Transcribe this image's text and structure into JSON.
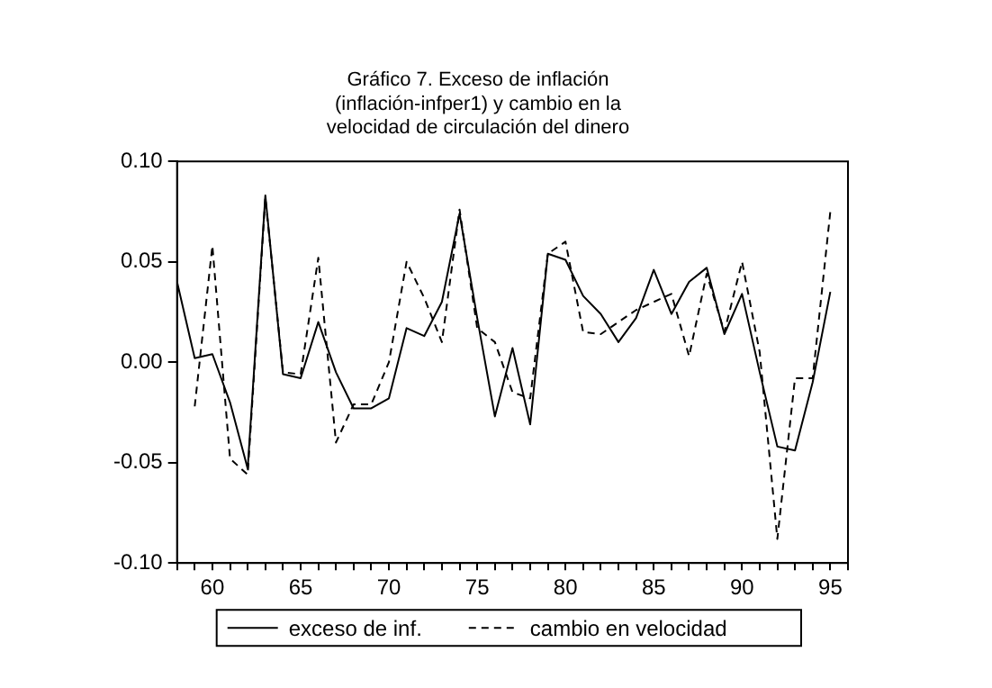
{
  "chart_data": {
    "type": "line",
    "title": "Gráfico 7. Exceso de inflación\n(inflación-infper1) y cambio en la\nvelocidad de circulación del dinero",
    "x": [
      58,
      59,
      60,
      61,
      62,
      63,
      64,
      65,
      66,
      67,
      68,
      69,
      70,
      71,
      72,
      73,
      74,
      75,
      76,
      77,
      78,
      79,
      80,
      81,
      82,
      83,
      84,
      85,
      86,
      87,
      88,
      89,
      90,
      91,
      92,
      93,
      94,
      95
    ],
    "series": [
      {
        "name": "exceso de inf.",
        "color": "#000000",
        "line_style": "solid",
        "values": [
          0.04,
          0.002,
          0.004,
          -0.02,
          -0.053,
          0.083,
          -0.006,
          -0.008,
          0.02,
          -0.005,
          -0.023,
          -0.023,
          -0.018,
          0.017,
          0.013,
          0.03,
          0.074,
          0.022,
          -0.027,
          0.007,
          -0.031,
          0.054,
          0.051,
          0.033,
          0.024,
          0.01,
          0.022,
          0.046,
          0.024,
          0.04,
          0.047,
          0.014,
          0.034,
          -0.005,
          -0.042,
          -0.044,
          -0.01,
          0.035
        ]
      },
      {
        "name": "cambio en velocidad",
        "color": "#000000",
        "line_style": "dashed",
        "values": [
          null,
          -0.022,
          0.058,
          -0.048,
          -0.056,
          0.082,
          -0.005,
          -0.006,
          0.052,
          -0.04,
          -0.021,
          -0.021,
          0.0,
          0.05,
          0.032,
          0.01,
          0.076,
          0.017,
          0.01,
          -0.015,
          -0.018,
          0.054,
          0.06,
          0.015,
          0.014,
          0.02,
          0.026,
          0.03,
          0.034,
          0.003,
          0.044,
          0.015,
          0.05,
          0.005,
          -0.088,
          -0.008,
          -0.008,
          0.075
        ]
      }
    ],
    "xlim": [
      58,
      96
    ],
    "xticks": [
      {
        "value": 58,
        "label": null
      },
      {
        "value": 59,
        "label": null
      },
      60,
      {
        "value": 61,
        "label": null
      },
      {
        "value": 62,
        "label": null
      },
      {
        "value": 63,
        "label": null
      },
      {
        "value": 64,
        "label": null
      },
      65,
      {
        "value": 66,
        "label": null
      },
      {
        "value": 67,
        "label": null
      },
      {
        "value": 68,
        "label": null
      },
      {
        "value": 69,
        "label": null
      },
      70,
      {
        "value": 71,
        "label": null
      },
      {
        "value": 72,
        "label": null
      },
      {
        "value": 73,
        "label": null
      },
      {
        "value": 74,
        "label": null
      },
      75,
      {
        "value": 76,
        "label": null
      },
      {
        "value": 77,
        "label": null
      },
      {
        "value": 78,
        "label": null
      },
      {
        "value": 79,
        "label": null
      },
      80,
      {
        "value": 81,
        "label": null
      },
      {
        "value": 82,
        "label": null
      },
      {
        "value": 83,
        "label": null
      },
      {
        "value": 84,
        "label": null
      },
      85,
      {
        "value": 86,
        "label": null
      },
      {
        "value": 87,
        "label": null
      },
      {
        "value": 88,
        "label": null
      },
      {
        "value": 89,
        "label": null
      },
      90,
      {
        "value": 91,
        "label": null
      },
      {
        "value": 92,
        "label": null
      },
      {
        "value": 93,
        "label": null
      },
      {
        "value": 94,
        "label": null
      },
      95,
      {
        "value": 96,
        "label": null
      }
    ],
    "ylim": [
      -0.1,
      0.1
    ],
    "yticks": [
      {
        "value": -0.1,
        "label": "-0.10"
      },
      {
        "value": -0.05,
        "label": "-0.05"
      },
      {
        "value": 0,
        "label": "0.00"
      },
      {
        "value": 0.05,
        "label": "0.05"
      },
      {
        "value": 0.1,
        "label": "0.10"
      }
    ],
    "grid": false,
    "legend": "bottom",
    "marker": "none"
  }
}
